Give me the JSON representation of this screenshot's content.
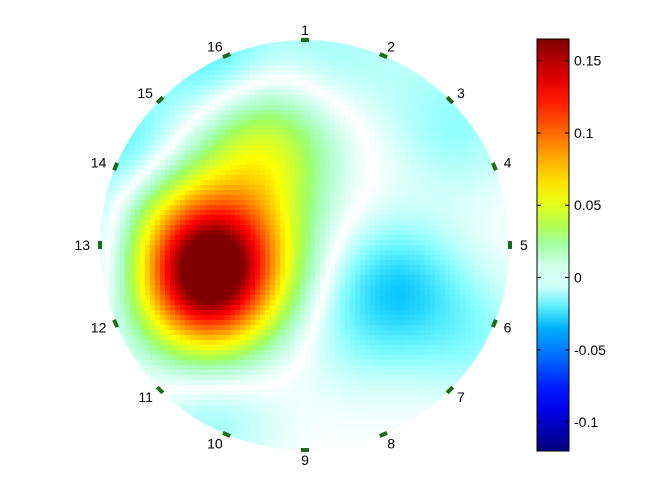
{
  "chart_data": {
    "type": "heatmap",
    "title": "",
    "xlabel": "",
    "ylabel": "",
    "colormap": "jet",
    "grid": false,
    "legend": "colorbar-right",
    "clim": [
      -0.12,
      0.165
    ],
    "colorbar_ticks": [
      {
        "value": 0.15,
        "label": "0.15"
      },
      {
        "value": 0.1,
        "label": "0.1"
      },
      {
        "value": 0.05,
        "label": "0.05"
      },
      {
        "value": 0,
        "label": "0"
      },
      {
        "value": -0.05,
        "label": "-0.05"
      },
      {
        "value": -0.1,
        "label": "-0.1"
      }
    ],
    "electrodes": [
      {
        "label": "1",
        "angle_deg": 90
      },
      {
        "label": "2",
        "angle_deg": 67.5
      },
      {
        "label": "3",
        "angle_deg": 45
      },
      {
        "label": "4",
        "angle_deg": 22.5
      },
      {
        "label": "5",
        "angle_deg": 0
      },
      {
        "label": "6",
        "angle_deg": -22.5
      },
      {
        "label": "7",
        "angle_deg": -45
      },
      {
        "label": "8",
        "angle_deg": -67.5
      },
      {
        "label": "9",
        "angle_deg": -90
      },
      {
        "label": "10",
        "angle_deg": -112.5
      },
      {
        "label": "11",
        "angle_deg": -135
      },
      {
        "label": "12",
        "angle_deg": -157.5
      },
      {
        "label": "13",
        "angle_deg": 180
      },
      {
        "label": "14",
        "angle_deg": 157.5
      },
      {
        "label": "15",
        "angle_deg": 135
      },
      {
        "label": "16",
        "angle_deg": 112.5
      }
    ],
    "field_components": [
      {
        "x": -0.47,
        "y": -0.18,
        "value": 0.16
      },
      {
        "x": -0.32,
        "y": 0.05,
        "value": 0.05
      },
      {
        "x": -0.62,
        "y": 0.08,
        "value": 0.04
      },
      {
        "x": -0.2,
        "y": 0.45,
        "value": 0.045
      },
      {
        "x": 0.45,
        "y": -0.2,
        "value": -0.025
      },
      {
        "x": 0.25,
        "y": -0.45,
        "value": -0.008
      },
      {
        "x": -0.45,
        "y": 0.9,
        "value": -0.02
      },
      {
        "x": -0.85,
        "y": 0.45,
        "value": -0.02
      },
      {
        "x": -0.95,
        "y": -0.05,
        "value": -0.02
      },
      {
        "x": -0.45,
        "y": -0.85,
        "value": -0.012
      },
      {
        "x": 0.75,
        "y": 0.55,
        "value": -0.012
      },
      {
        "x": 0.82,
        "y": -0.45,
        "value": -0.012
      },
      {
        "x": 0.5,
        "y": 0.85,
        "value": -0.005
      },
      {
        "x": 0.1,
        "y": 0.95,
        "value": -0.01
      }
    ]
  }
}
